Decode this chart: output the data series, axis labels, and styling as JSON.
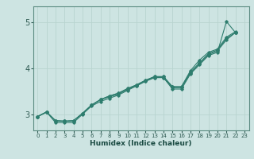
{
  "xlabel": "Humidex (Indice chaleur)",
  "xlim": [
    -0.5,
    23.5
  ],
  "ylim": [
    2.65,
    5.35
  ],
  "xticks": [
    0,
    1,
    2,
    3,
    4,
    5,
    6,
    7,
    8,
    9,
    10,
    11,
    12,
    13,
    14,
    15,
    16,
    17,
    18,
    19,
    20,
    21,
    22,
    23
  ],
  "yticks": [
    3,
    4,
    5
  ],
  "bg_color": "#cde4e2",
  "line_color": "#2e7d6e",
  "grid_color": "#b8d4d0",
  "curves": [
    [
      2.95,
      3.05,
      2.82,
      2.82,
      2.82,
      3.0,
      3.18,
      3.28,
      3.35,
      3.42,
      3.52,
      3.62,
      3.72,
      3.8,
      3.8,
      3.55,
      3.55,
      3.88,
      4.08,
      4.28,
      4.35,
      5.02,
      4.78,
      null
    ],
    [
      2.95,
      3.05,
      2.86,
      2.85,
      2.86,
      3.02,
      3.2,
      3.32,
      3.38,
      3.44,
      3.54,
      3.62,
      3.72,
      3.8,
      3.8,
      3.58,
      3.58,
      3.9,
      4.1,
      4.3,
      4.38,
      4.62,
      4.78,
      null
    ],
    [
      2.95,
      3.05,
      2.86,
      2.85,
      2.86,
      3.02,
      3.2,
      3.32,
      3.4,
      3.46,
      3.56,
      3.64,
      3.74,
      3.82,
      3.82,
      3.6,
      3.6,
      3.92,
      4.12,
      4.32,
      4.4,
      4.65,
      4.78,
      null
    ],
    [
      2.95,
      3.05,
      2.86,
      2.85,
      2.86,
      3.02,
      3.2,
      3.32,
      3.4,
      3.46,
      3.56,
      3.64,
      3.74,
      3.82,
      3.82,
      3.6,
      3.6,
      3.95,
      4.18,
      4.35,
      4.42,
      4.68,
      4.8,
      null
    ]
  ]
}
